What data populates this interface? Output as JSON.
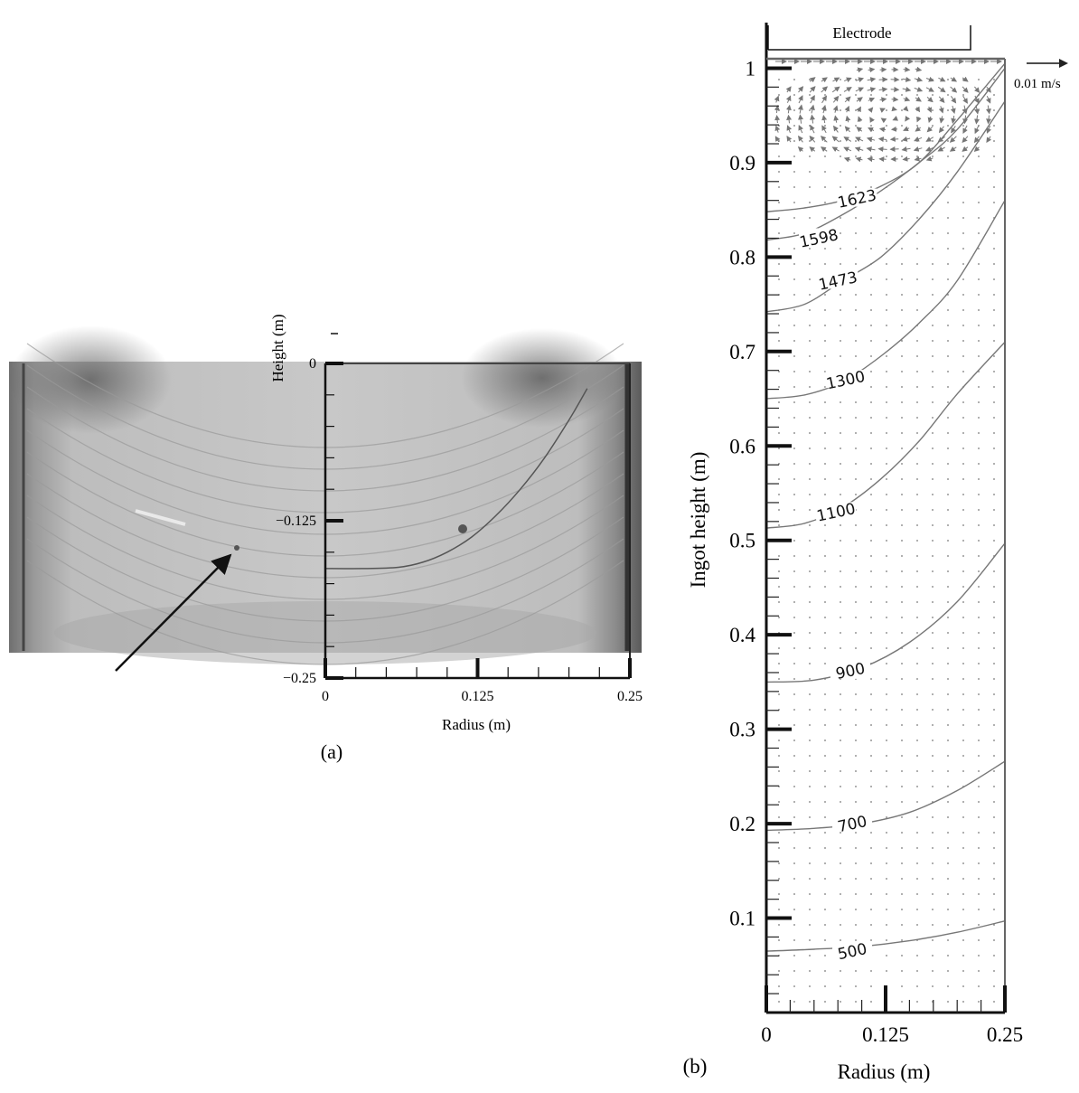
{
  "chart_data": [
    {
      "panel": "a",
      "type": "image-with-overlay",
      "caption": "(a)",
      "xlabel": "Radius (m)",
      "ylabel": "Height (m)",
      "xlim": [
        0,
        0.25
      ],
      "ylim": [
        -0.25,
        0
      ],
      "xticks": [
        {
          "value": 0,
          "label": "0"
        },
        {
          "value": 0.125,
          "label": "0.125"
        },
        {
          "value": 0.25,
          "label": "0.25"
        }
      ],
      "yticks": [
        {
          "value": 0,
          "label": "0"
        },
        {
          "value": -0.125,
          "label": "−0.125"
        },
        {
          "value": -0.25,
          "label": "−0.25"
        }
      ],
      "pool_profile": {
        "x": [
          0,
          0.03,
          0.06,
          0.08,
          0.1,
          0.12,
          0.14,
          0.16,
          0.18,
          0.2,
          0.215
        ],
        "y": [
          -0.163,
          -0.163,
          -0.162,
          -0.158,
          -0.15,
          -0.138,
          -0.121,
          -0.1,
          -0.075,
          -0.045,
          -0.02
        ]
      }
    },
    {
      "panel": "b",
      "type": "contour",
      "caption": "(b)",
      "xlabel": "Radius (m)",
      "ylabel": "Ingot height (m)",
      "xlim": [
        0,
        0.25
      ],
      "ylim": [
        0,
        1.01
      ],
      "xticks": [
        {
          "value": 0,
          "label": "0"
        },
        {
          "value": 0.125,
          "label": "0.125"
        },
        {
          "value": 0.25,
          "label": "0.25"
        }
      ],
      "yticks": [
        {
          "value": 0.1,
          "label": "0.1"
        },
        {
          "value": 0.2,
          "label": "0.2"
        },
        {
          "value": 0.3,
          "label": "0.3"
        },
        {
          "value": 0.4,
          "label": "0.4"
        },
        {
          "value": 0.5,
          "label": "0.5"
        },
        {
          "value": 0.6,
          "label": "0.6"
        },
        {
          "value": 0.7,
          "label": "0.7"
        },
        {
          "value": 0.8,
          "label": "0.8"
        },
        {
          "value": 0.9,
          "label": "0.9"
        },
        {
          "value": 1,
          "label": "1"
        }
      ],
      "electrode_label": "Electrode",
      "electrode_radius": 0.215,
      "velocity_scale_label": "0.01 m/s",
      "contours": [
        {
          "label": "500",
          "label_at": [
            0.09,
            0.065
          ],
          "x": [
            0,
            0.05,
            0.1,
            0.15,
            0.2,
            0.25
          ],
          "y": [
            0.065,
            0.067,
            0.07,
            0.076,
            0.085,
            0.097
          ]
        },
        {
          "label": "700",
          "label_at": [
            0.09,
            0.2
          ],
          "x": [
            0,
            0.05,
            0.1,
            0.15,
            0.2,
            0.25
          ],
          "y": [
            0.193,
            0.195,
            0.2,
            0.212,
            0.235,
            0.266
          ]
        },
        {
          "label": "900",
          "label_at": [
            0.088,
            0.362
          ],
          "x": [
            0,
            0.05,
            0.1,
            0.15,
            0.2,
            0.25
          ],
          "y": [
            0.35,
            0.352,
            0.365,
            0.392,
            0.435,
            0.497
          ]
        },
        {
          "label": "1100",
          "label_at": [
            0.073,
            0.53
          ],
          "x": [
            0,
            0.04,
            0.08,
            0.12,
            0.16,
            0.2,
            0.25
          ],
          "y": [
            0.513,
            0.518,
            0.535,
            0.565,
            0.605,
            0.655,
            0.71
          ]
        },
        {
          "label": "1300",
          "label_at": [
            0.083,
            0.67
          ],
          "x": [
            0,
            0.04,
            0.08,
            0.12,
            0.16,
            0.2,
            0.25
          ],
          "y": [
            0.65,
            0.654,
            0.668,
            0.695,
            0.73,
            0.775,
            0.86
          ]
        },
        {
          "label": "1473",
          "label_at": [
            0.075,
            0.775
          ],
          "x": [
            0,
            0.04,
            0.08,
            0.12,
            0.16,
            0.2,
            0.25
          ],
          "y": [
            0.742,
            0.75,
            0.775,
            0.8,
            0.84,
            0.89,
            0.965
          ]
        },
        {
          "label": "1598",
          "label_at": [
            0.055,
            0.82
          ],
          "x": [
            0,
            0.04,
            0.08,
            0.12,
            0.16,
            0.2,
            0.25
          ],
          "y": [
            0.818,
            0.825,
            0.845,
            0.87,
            0.9,
            0.935,
            1.0
          ]
        },
        {
          "label": "1623",
          "label_at": [
            0.095,
            0.862
          ],
          "x": [
            0,
            0.04,
            0.08,
            0.12,
            0.16,
            0.2,
            0.25
          ],
          "y": [
            0.848,
            0.852,
            0.86,
            0.875,
            0.9,
            0.945,
            1.005
          ]
        }
      ]
    }
  ]
}
